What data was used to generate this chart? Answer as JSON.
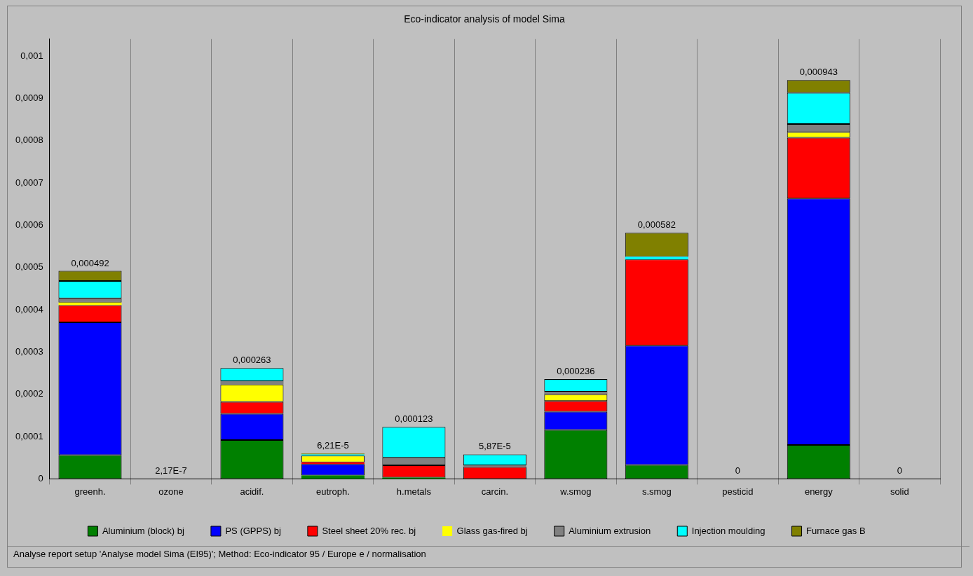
{
  "chart_data": {
    "type": "bar",
    "stacked": true,
    "title": "Eco-indicator analysis of model Sima",
    "categories": [
      "greenh.",
      "ozone",
      "acidif.",
      "eutroph.",
      "h.metals",
      "carcin.",
      "w.smog",
      "s.smog",
      "pesticid",
      "energy",
      "solid"
    ],
    "series": [
      {
        "name": "Aluminium (block) bj",
        "color": "#008000",
        "values": [
          5.6e-05,
          0,
          9.2e-05,
          8e-06,
          3e-06,
          null,
          0.000116,
          3.3e-05,
          0,
          8e-05,
          0
        ]
      },
      {
        "name": "PS (GPPS) bj",
        "color": "#0000ff",
        "values": [
          0.000314,
          null,
          6.2e-05,
          2.7e-05,
          0,
          0,
          4.3e-05,
          0.000282,
          0,
          0.000583,
          0
        ]
      },
      {
        "name": "Steel sheet 20% rec. bj",
        "color": "#ff0000",
        "values": [
          4.1e-05,
          0,
          2.8e-05,
          4e-06,
          2.9e-05,
          2.8e-05,
          2.5e-05,
          0.000204,
          0,
          0.000144,
          0
        ]
      },
      {
        "name": "Glass gas-fired bj",
        "color": "#ffff00",
        "values": [
          6e-06,
          0,
          4.1e-05,
          1.6e-05,
          0,
          0,
          1.6e-05,
          0,
          0,
          1.3e-05,
          0
        ]
      },
      {
        "name": "Aluminium extrusion",
        "color": "#808080",
        "values": [
          1e-05,
          0,
          8e-06,
          null,
          1.8e-05,
          4e-06,
          6e-06,
          0,
          0,
          1.9e-05,
          0
        ]
      },
      {
        "name": "Injection moulding",
        "color": "#00ffff",
        "values": [
          4.1e-05,
          0,
          3.1e-05,
          3e-06,
          7.3e-05,
          2.6e-05,
          3e-05,
          6e-06,
          0,
          7.4e-05,
          0
        ]
      },
      {
        "name": "Furnace gas B",
        "color": "#808000",
        "values": [
          2.4e-05,
          0,
          null,
          2e-06,
          0,
          0,
          0,
          5.7e-05,
          0,
          3e-05,
          0
        ]
      }
    ],
    "totals": [
      "0,000492",
      "2,17E-7",
      "0,000263",
      "6,21E-5",
      "0,000123",
      "5,87E-5",
      "0,000236",
      "0,000582",
      "0",
      "0,000943",
      "0"
    ],
    "ylim": [
      0,
      0.00104
    ],
    "yticks": [
      0,
      {
        "value": 0.0001,
        "label": "0,0001"
      },
      {
        "value": 0.0002,
        "label": "0,0002"
      },
      {
        "value": 0.0003,
        "label": "0,0003"
      },
      {
        "value": 0.0004,
        "label": "0,0004"
      },
      {
        "value": 0.0005,
        "label": "0,0005"
      },
      {
        "value": 0.0006,
        "label": "0,0006"
      },
      {
        "value": 0.0007,
        "label": "0,0007"
      },
      {
        "value": 0.0008,
        "label": "0,0008"
      },
      {
        "value": 0.0009,
        "label": "0,0009"
      },
      {
        "value": 0.001,
        "label": "0,001"
      }
    ],
    "grid": "x",
    "legend": "bottom",
    "annotations": [
      "Analyse report setup 'Analyse model Sima (EI95)';  Method: Eco-indicator 95 /  Europe e / normalisation"
    ]
  }
}
